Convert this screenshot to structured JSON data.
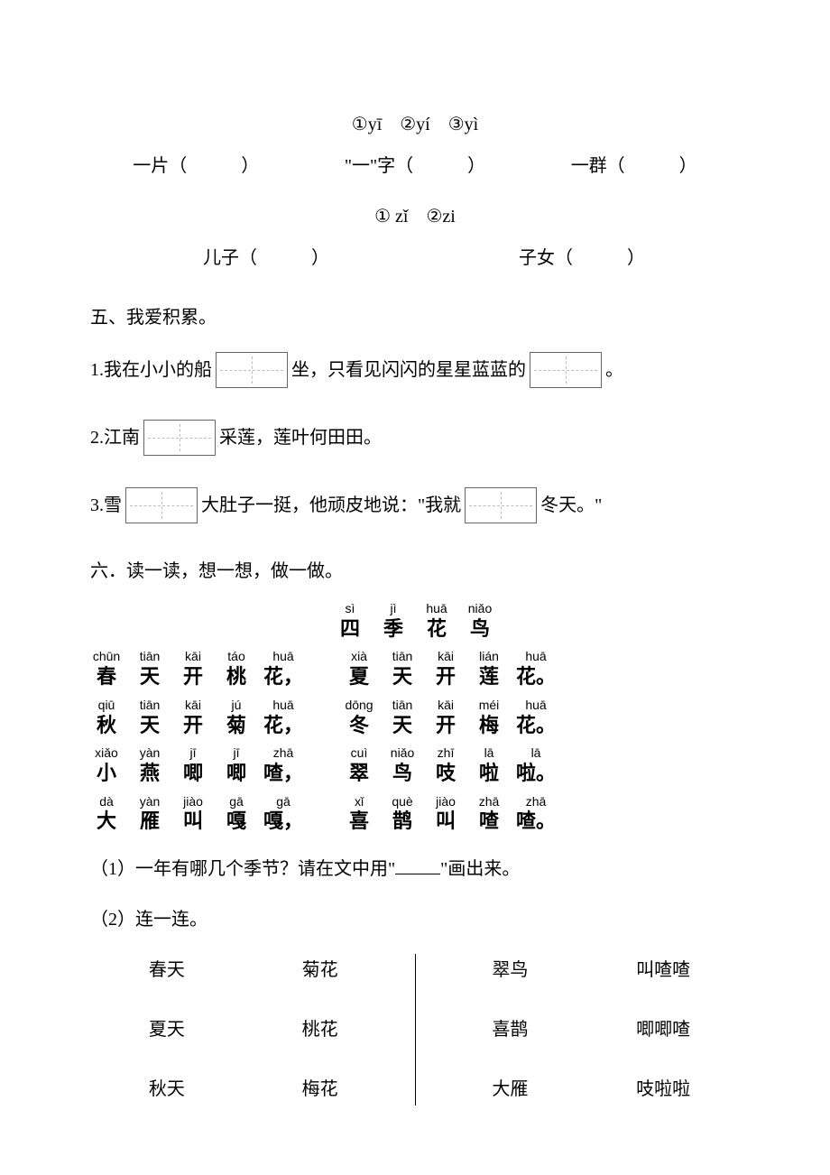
{
  "pinyin_options_1": "①yī　②yí　③yì",
  "row1": {
    "item1": "一片（　　　）",
    "item2": "\"一\"字（　　　）",
    "item3": "一群（　　　）"
  },
  "pinyin_options_2": "① zǐ　②zi",
  "row2": {
    "item1": "儿子（　　　）",
    "item2": "子女（　　　）"
  },
  "section5": {
    "title": "五、我爱积累。",
    "s1_a": "1.我在小小的船",
    "s1_b": "坐，只看见闪闪的星星蓝蓝的",
    "s1_c": "。",
    "s2_a": "2.江南",
    "s2_b": "采莲，莲叶何田田。",
    "s3_a": "3.雪",
    "s3_b": "大肚子一挺，他顽皮地说：\"我就",
    "s3_c": "冬天。\""
  },
  "section6": {
    "title": "六．读一读，想一想，做一做。",
    "poem_title": [
      {
        "p": "sì",
        "h": "四"
      },
      {
        "p": "jì",
        "h": "季"
      },
      {
        "p": "huā",
        "h": "花"
      },
      {
        "p": "niǎo",
        "h": "鸟"
      }
    ],
    "line1": [
      {
        "p": "chūn",
        "h": "春"
      },
      {
        "p": "tiān",
        "h": "天"
      },
      {
        "p": "kāi",
        "h": "开"
      },
      {
        "p": "táo",
        "h": "桃"
      },
      {
        "p": "huā",
        "h": "花，"
      },
      {
        "gap": true
      },
      {
        "p": "xià",
        "h": "夏"
      },
      {
        "p": "tiān",
        "h": "天"
      },
      {
        "p": "kāi",
        "h": "开"
      },
      {
        "p": "lián",
        "h": "莲"
      },
      {
        "p": "huā",
        "h": "花。"
      }
    ],
    "line2": [
      {
        "p": "qiū",
        "h": "秋"
      },
      {
        "p": "tiān",
        "h": "天"
      },
      {
        "p": "kāi",
        "h": "开"
      },
      {
        "p": "jú",
        "h": "菊"
      },
      {
        "p": "huā",
        "h": "花，"
      },
      {
        "gap": true
      },
      {
        "p": "dōng",
        "h": "冬"
      },
      {
        "p": "tiān",
        "h": "天"
      },
      {
        "p": "kāi",
        "h": "开"
      },
      {
        "p": "méi",
        "h": "梅"
      },
      {
        "p": "huā",
        "h": "花。"
      }
    ],
    "line3": [
      {
        "p": "xiǎo",
        "h": "小"
      },
      {
        "p": "yàn",
        "h": "燕"
      },
      {
        "p": "jī",
        "h": "唧"
      },
      {
        "p": "jī",
        "h": "唧"
      },
      {
        "p": "zhā",
        "h": "喳，"
      },
      {
        "gap": true
      },
      {
        "p": "cuì",
        "h": "翠"
      },
      {
        "p": "niǎo",
        "h": "鸟"
      },
      {
        "p": "zhī",
        "h": "吱"
      },
      {
        "p": "lā",
        "h": "啦"
      },
      {
        "p": "lā",
        "h": "啦。"
      }
    ],
    "line4": [
      {
        "p": "dà",
        "h": "大"
      },
      {
        "p": "yàn",
        "h": "雁"
      },
      {
        "p": "jiào",
        "h": "叫"
      },
      {
        "p": "gā",
        "h": "嘎"
      },
      {
        "p": "gā",
        "h": "嘎，"
      },
      {
        "gap": true
      },
      {
        "p": "xǐ",
        "h": "喜"
      },
      {
        "p": "què",
        "h": "鹊"
      },
      {
        "p": "jiào",
        "h": "叫"
      },
      {
        "p": "zhā",
        "h": "喳"
      },
      {
        "p": "zhā",
        "h": "喳。"
      }
    ],
    "q1_a": "（1）一年有哪几个季节？请在文中用\"",
    "q1_b": "\"画出来。",
    "q2": "（2）连一连。",
    "match_left": {
      "col1": [
        "春天",
        "夏天",
        "秋天"
      ],
      "col2": [
        "菊花",
        "桃花",
        "梅花"
      ]
    },
    "match_right": {
      "col1": [
        "翠鸟",
        "喜鹊",
        "大雁"
      ],
      "col2": [
        "叫喳喳",
        "唧唧喳",
        "吱啦啦"
      ]
    }
  }
}
